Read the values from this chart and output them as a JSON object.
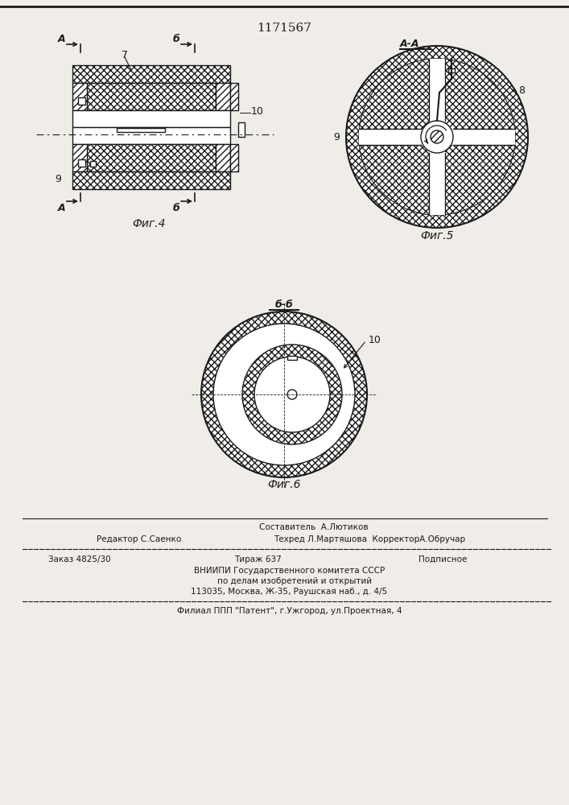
{
  "patent_number": "1171567",
  "bg_color": "#f0ede8",
  "line_color": "#1a1a1a",
  "fig4_label": "Фиг.4",
  "fig5_label": "Фиг.5",
  "fig6_label": "Фиг.6",
  "footer_line0": "Составитель  А.Лютиков",
  "footer_line1a": "Редактор С.Саенко",
  "footer_line1b": "Техред Л.Мартяшова  КорректорА.Обручар",
  "footer_line2a": "Заказ 4825/30",
  "footer_line2b": "Тираж 637",
  "footer_line2c": "Подписное",
  "footer_line3": "    ВНИИПИ Государственного комитета СССР",
  "footer_line4": "        по делам изобретений и открытий",
  "footer_line5": "    113035, Москва, Ж-35, Раушская наб., д. 4/5",
  "footer_line6": "    Филиал ППП \"Патент\", г.Ужгород, ул.Проектная, 4"
}
